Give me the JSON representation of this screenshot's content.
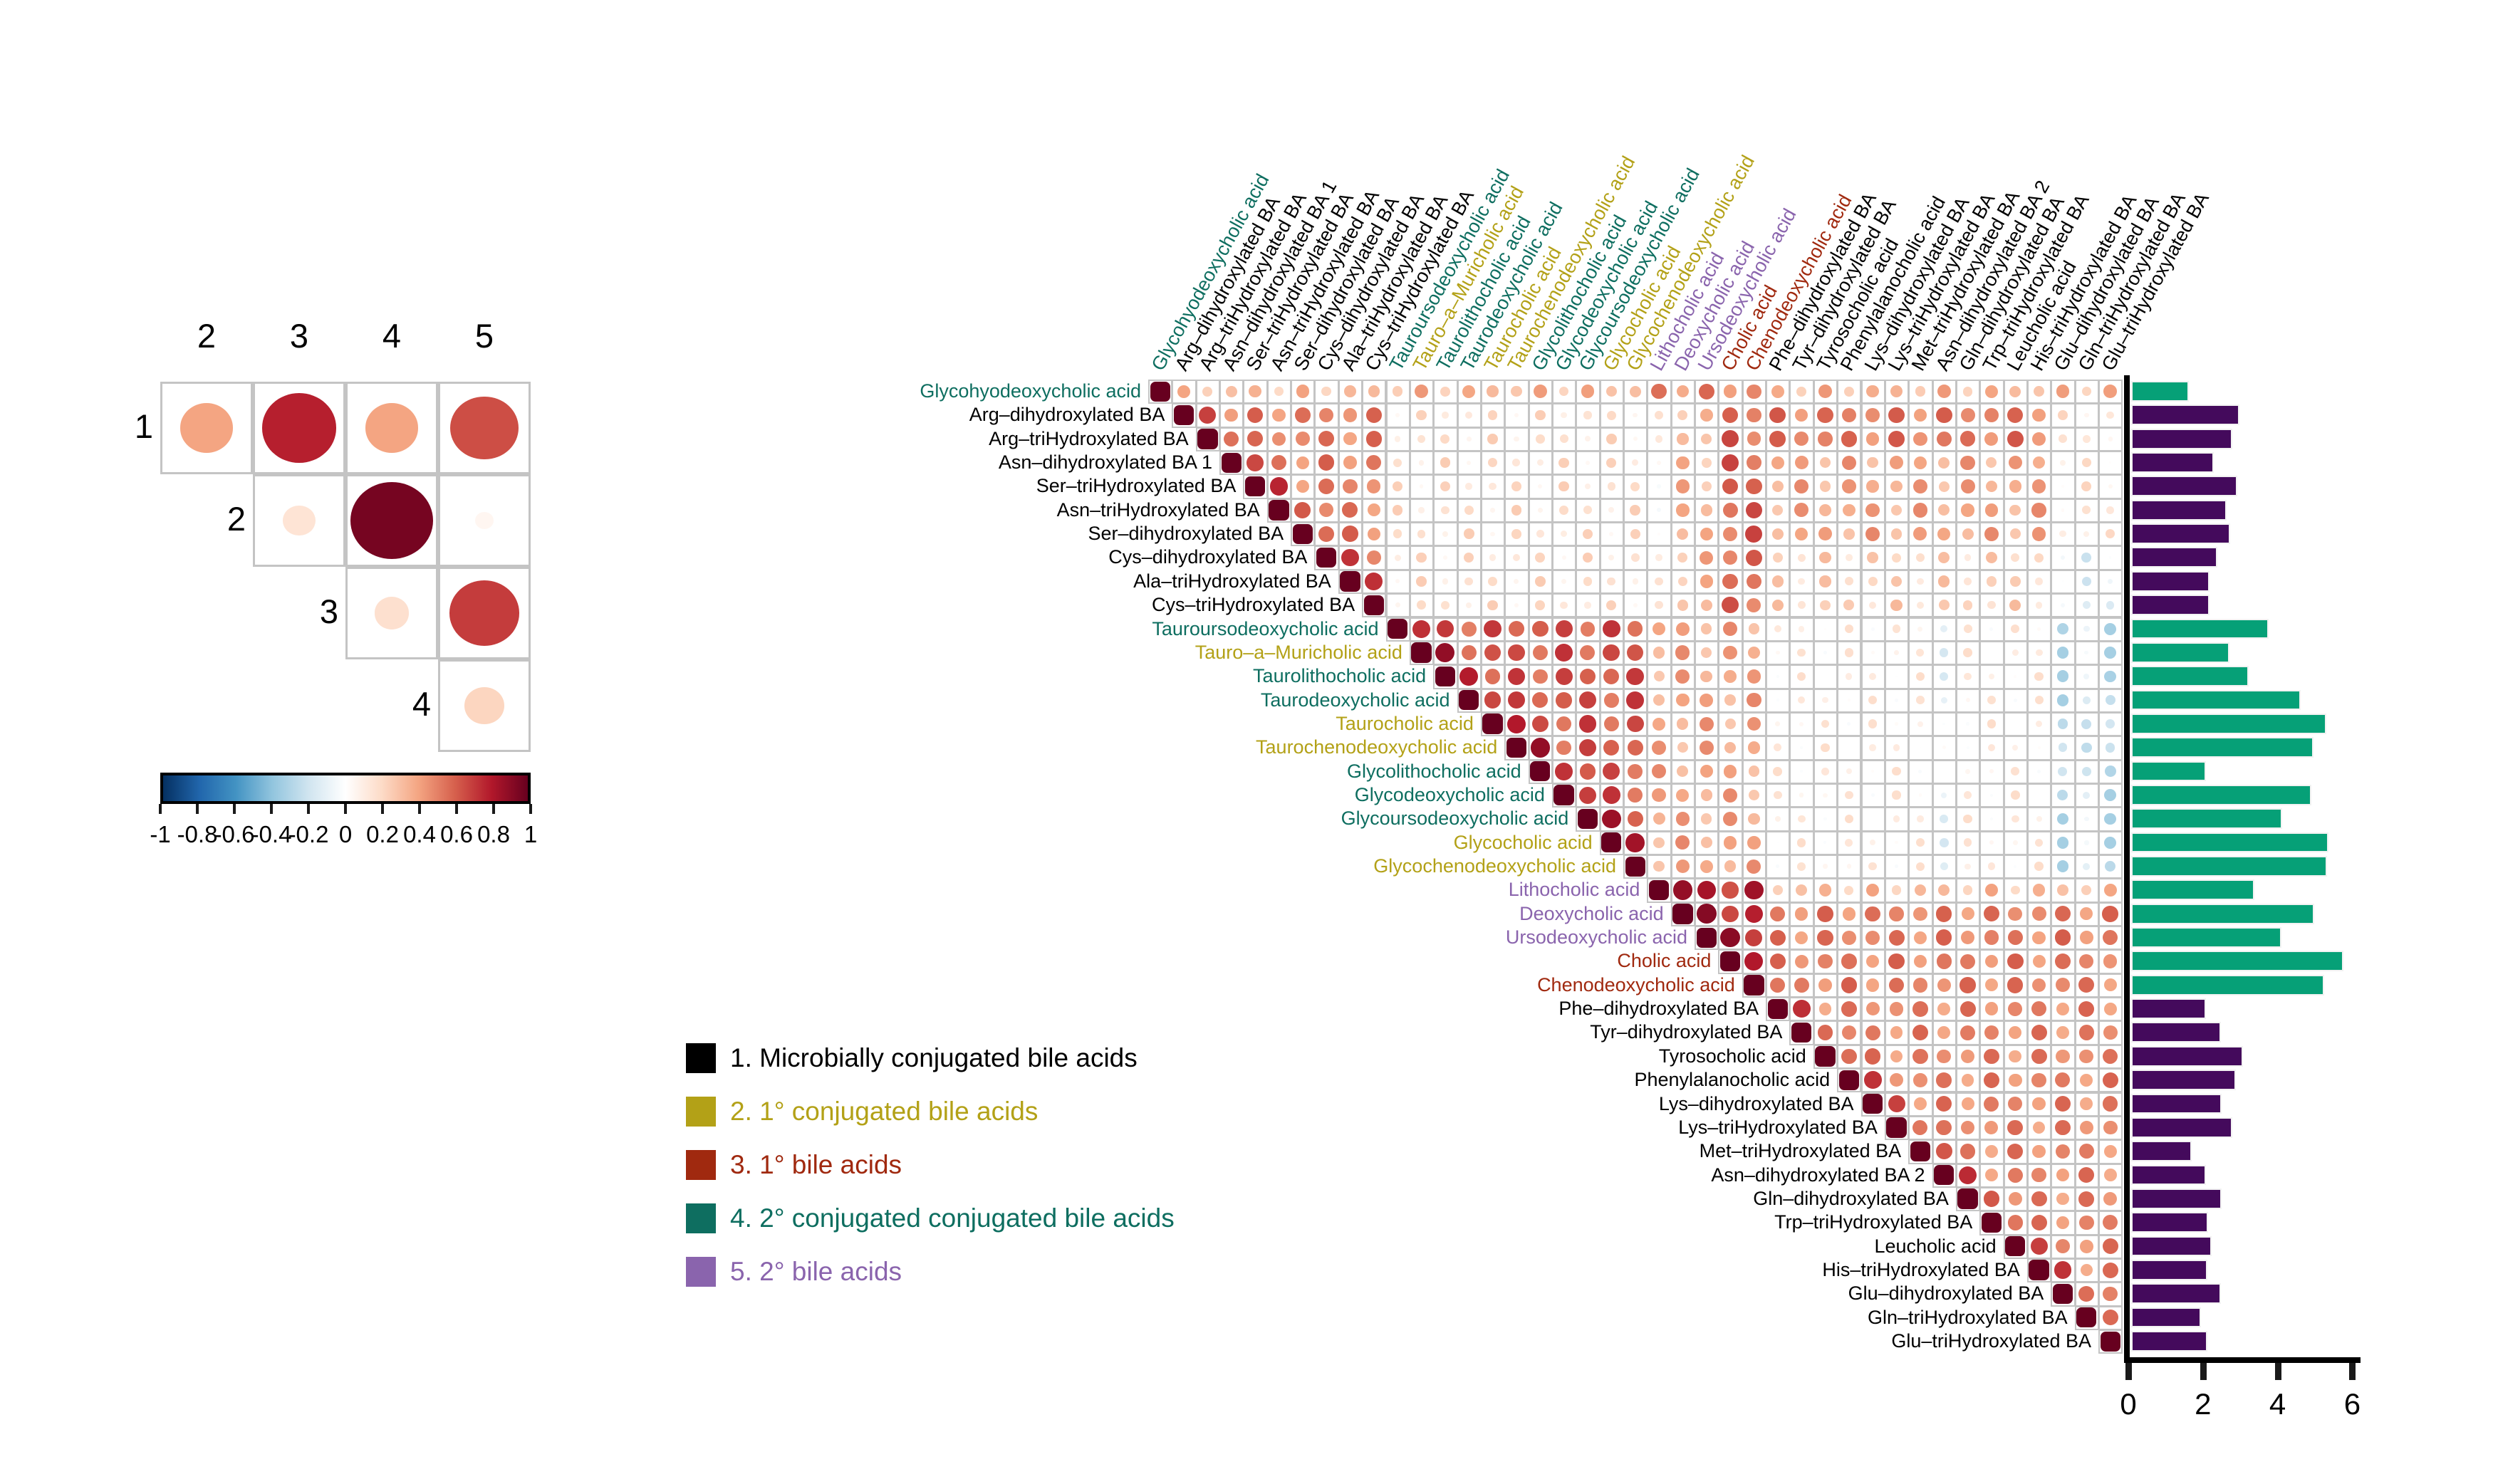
{
  "figure": {
    "background": "#ffffff",
    "group_colors": {
      "1": "#000000",
      "2": "#b3a117",
      "3": "#a0290f",
      "4": "#0e6e60",
      "5": "#8a64ad"
    },
    "bar_colors": {
      "microbial": "#440a5c",
      "other": "#06a077"
    },
    "grid_color": "#c4c4c4",
    "diagonal_color": "#67001f"
  },
  "legend": {
    "items": [
      {
        "label": "1. Microbially conjugated bile acids",
        "color": "#000000"
      },
      {
        "label": "2. 1° conjugated bile acids",
        "color": "#b3a117"
      },
      {
        "label": "3. 1° bile acids",
        "color": "#a0290f"
      },
      {
        "label": "4. 2° conjugated conjugated bile acids",
        "color": "#0e6e60"
      },
      {
        "label": "5. 2° bile acids",
        "color": "#8a64ad"
      }
    ]
  },
  "chart_data": [
    {
      "type": "heatmap",
      "name": "group-summary-correlogram",
      "title": "",
      "layout": "upper-triangle-no-diagonal",
      "col_labels": [
        "2",
        "3",
        "4",
        "5"
      ],
      "row_labels": [
        "1",
        "2",
        "3",
        "4"
      ],
      "values": [
        {
          "row": 1,
          "col": 2,
          "r": 0.4
        },
        {
          "row": 1,
          "col": 3,
          "r": 0.78
        },
        {
          "row": 1,
          "col": 4,
          "r": 0.4
        },
        {
          "row": 1,
          "col": 5,
          "r": 0.65
        },
        {
          "row": 2,
          "col": 3,
          "r": 0.15
        },
        {
          "row": 2,
          "col": 4,
          "r": 0.96
        },
        {
          "row": 2,
          "col": 5,
          "r": 0.05
        },
        {
          "row": 3,
          "col": 4,
          "r": 0.17
        },
        {
          "row": 3,
          "col": 5,
          "r": 0.7
        },
        {
          "row": 4,
          "col": 5,
          "r": 0.22
        }
      ]
    },
    {
      "type": "heatmap",
      "name": "colorbar-scale",
      "tick_labels": [
        "-1",
        "-0.8",
        "-0.6",
        "-0.4",
        "-0.2",
        "0",
        "0.2",
        "0.4",
        "0.6",
        "0.8",
        "1"
      ],
      "range": [
        -1,
        1
      ],
      "color_stops": [
        {
          "v": -1.0,
          "c": "#053061"
        },
        {
          "v": -0.8,
          "c": "#2166ac"
        },
        {
          "v": -0.6,
          "c": "#4393c3"
        },
        {
          "v": -0.4,
          "c": "#92c5de"
        },
        {
          "v": -0.2,
          "c": "#d1e5f0"
        },
        {
          "v": 0.0,
          "c": "#ffffff"
        },
        {
          "v": 0.2,
          "c": "#fddbc7"
        },
        {
          "v": 0.4,
          "c": "#f4a582"
        },
        {
          "v": 0.6,
          "c": "#d6604d"
        },
        {
          "v": 0.8,
          "c": "#b2182b"
        },
        {
          "v": 1.0,
          "c": "#67001f"
        }
      ]
    },
    {
      "type": "heatmap",
      "name": "bile-acid-correlation-matrix",
      "layout": "upper-triangle-with-diagonal",
      "n": 41,
      "variables": [
        {
          "label": "Glycohyodeoxycholic acid",
          "group": 4
        },
        {
          "label": "Arg–dihydroxylated BA",
          "group": 1
        },
        {
          "label": "Arg–triHydroxylated BA",
          "group": 1
        },
        {
          "label": "Asn–dihydroxylated BA 1",
          "group": 1
        },
        {
          "label": "Ser–triHydroxylated BA",
          "group": 1
        },
        {
          "label": "Asn–triHydroxylated BA",
          "group": 1
        },
        {
          "label": "Ser–dihydroxylated BA",
          "group": 1
        },
        {
          "label": "Cys–dihydroxylated BA",
          "group": 1
        },
        {
          "label": "Ala–triHydroxylated BA",
          "group": 1
        },
        {
          "label": "Cys–triHydroxylated BA",
          "group": 1
        },
        {
          "label": "Tauroursodeoxycholic acid",
          "group": 4
        },
        {
          "label": "Tauro–a–Muricholic acid",
          "group": 2
        },
        {
          "label": "Taurolithocholic acid",
          "group": 4
        },
        {
          "label": "Taurodeoxycholic acid",
          "group": 4
        },
        {
          "label": "Taurocholic acid",
          "group": 2
        },
        {
          "label": "Taurochenodeoxycholic acid",
          "group": 2
        },
        {
          "label": "Glycolithocholic acid",
          "group": 4
        },
        {
          "label": "Glycodeoxycholic acid",
          "group": 4
        },
        {
          "label": "Glycoursodeoxycholic acid",
          "group": 4
        },
        {
          "label": "Glycocholic acid",
          "group": 2
        },
        {
          "label": "Glycochenodeoxycholic acid",
          "group": 2
        },
        {
          "label": "Lithocholic acid",
          "group": 5
        },
        {
          "label": "Deoxycholic acid",
          "group": 5
        },
        {
          "label": "Ursodeoxycholic acid",
          "group": 5
        },
        {
          "label": "Cholic acid",
          "group": 3
        },
        {
          "label": "Chenodeoxycholic acid",
          "group": 3
        },
        {
          "label": "Phe–dihydroxylated BA",
          "group": 1
        },
        {
          "label": "Tyr–dihydroxylated BA",
          "group": 1
        },
        {
          "label": "Tyrosocholic acid",
          "group": 1
        },
        {
          "label": "Phenylalanocholic acid",
          "group": 1
        },
        {
          "label": "Lys–dihydroxylated BA",
          "group": 1
        },
        {
          "label": "Lys–triHydroxylated BA",
          "group": 1
        },
        {
          "label": "Met–triHydroxylated BA",
          "group": 1
        },
        {
          "label": "Asn–dihydroxylated BA 2",
          "group": 1
        },
        {
          "label": "Gln–dihydroxylated BA",
          "group": 1
        },
        {
          "label": "Trp–triHydroxylated BA",
          "group": 1
        },
        {
          "label": "Leucholic acid",
          "group": 1
        },
        {
          "label": "His–triHydroxylated BA",
          "group": 1
        },
        {
          "label": "Glu–dihydroxylated BA",
          "group": 1
        },
        {
          "label": "Gln–triHydroxylated BA",
          "group": 1
        },
        {
          "label": "Glu–triHydroxylated BA",
          "group": 1
        }
      ],
      "correlation_model": {
        "note": "approximate block means read from figure; last matching rule wins; i<j (1-indexed)",
        "rules": [
          {
            "rows": [
              2,
              10
            ],
            "cols": [
              2,
              10
            ],
            "r": 0.5
          },
          {
            "rows": [
              11,
              21
            ],
            "cols": [
              11,
              21
            ],
            "r": 0.62
          },
          {
            "rows": [
              22,
              26
            ],
            "cols": [
              22,
              26
            ],
            "r": 0.75
          },
          {
            "rows": [
              27,
              41
            ],
            "cols": [
              27,
              41
            ],
            "r": 0.48
          },
          {
            "rows": [
              1,
              1
            ],
            "cols": [
              2,
              10
            ],
            "r": 0.3
          },
          {
            "rows": [
              1,
              1
            ],
            "cols": [
              11,
              21
            ],
            "r": 0.33
          },
          {
            "rows": [
              1,
              1
            ],
            "cols": [
              22,
              26
            ],
            "r": 0.48
          },
          {
            "rows": [
              1,
              1
            ],
            "cols": [
              27,
              41
            ],
            "r": 0.33
          },
          {
            "rows": [
              2,
              10
            ],
            "cols": [
              11,
              21
            ],
            "r": 0.15
          },
          {
            "rows": [
              2,
              10
            ],
            "cols": [
              22,
              22
            ],
            "r": 0.06
          },
          {
            "rows": [
              2,
              10
            ],
            "cols": [
              23,
              24
            ],
            "r": 0.33
          },
          {
            "rows": [
              2,
              10
            ],
            "cols": [
              25,
              26
            ],
            "r": 0.58
          },
          {
            "rows": [
              2,
              3
            ],
            "cols": [
              27,
              41
            ],
            "r": 0.52
          },
          {
            "rows": [
              4,
              7
            ],
            "cols": [
              27,
              41
            ],
            "r": 0.38
          },
          {
            "rows": [
              8,
              10
            ],
            "cols": [
              27,
              41
            ],
            "r": 0.22
          },
          {
            "rows": [
              2,
              7
            ],
            "cols": [
              39,
              41
            ],
            "r": 0.12
          },
          {
            "rows": [
              8,
              10
            ],
            "cols": [
              39,
              41
            ],
            "r": -0.12
          },
          {
            "rows": [
              11,
              21
            ],
            "cols": [
              22,
              26
            ],
            "r": 0.38
          },
          {
            "rows": [
              11,
              21
            ],
            "cols": [
              27,
              38
            ],
            "r": 0.08
          },
          {
            "rows": [
              11,
              21
            ],
            "cols": [
              34,
              34
            ],
            "r": -0.08
          },
          {
            "rows": [
              11,
              21
            ],
            "cols": [
              39,
              39
            ],
            "r": -0.3
          },
          {
            "rows": [
              11,
              21
            ],
            "cols": [
              40,
              40
            ],
            "r": -0.15
          },
          {
            "rows": [
              11,
              21
            ],
            "cols": [
              41,
              41
            ],
            "r": -0.3
          },
          {
            "rows": [
              22,
              22
            ],
            "cols": [
              27,
              41
            ],
            "r": 0.3
          },
          {
            "rows": [
              23,
              26
            ],
            "cols": [
              27,
              41
            ],
            "r": 0.5
          }
        ],
        "clusters": [
          [
            1,
            1
          ],
          [
            2,
            10
          ],
          [
            11,
            21
          ],
          [
            22,
            26
          ],
          [
            27,
            41
          ]
        ],
        "near_diagonal_boost": 0.16,
        "jitter_amplitude": 0.11,
        "clamp": [
          -0.34,
          0.92
        ],
        "diagonal_r": 1.0
      }
    },
    {
      "type": "bar",
      "name": "abundance-bars",
      "orientation": "horizontal",
      "xlabel": "",
      "ylabel": "",
      "xlim": [
        0,
        6.3
      ],
      "xticks": [
        "0",
        "2",
        "4",
        "6"
      ],
      "grid": false,
      "categories": [
        "Glycohyodeoxycholic acid",
        "Arg–dihydroxylated BA",
        "Arg–triHydroxylated BA",
        "Asn–dihydroxylated BA 1",
        "Ser–triHydroxylated BA",
        "Asn–triHydroxylated BA",
        "Ser–dihydroxylated BA",
        "Cys–dihydroxylated BA",
        "Ala–triHydroxylated BA",
        "Cys–triHydroxylated BA",
        "Tauroursodeoxycholic acid",
        "Tauro–a–Muricholic acid",
        "Taurolithocholic acid",
        "Taurodeoxycholic acid",
        "Taurocholic acid",
        "Taurochenodeoxycholic acid",
        "Glycolithocholic acid",
        "Glycodeoxycholic acid",
        "Glycoursodeoxycholic acid",
        "Glycocholic acid",
        "Glycochenodeoxycholic acid",
        "Lithocholic acid",
        "Deoxycholic acid",
        "Ursodeoxycholic acid",
        "Cholic acid",
        "Chenodeoxycholic acid",
        "Phe–dihydroxylated BA",
        "Tyr–dihydroxylated BA",
        "Tyrosocholic acid",
        "Phenylalanocholic acid",
        "Lys–dihydroxylated BA",
        "Lys–triHydroxylated BA",
        "Met–triHydroxylated BA",
        "Asn–dihydroxylated BA 2",
        "Gln–dihydroxylated BA",
        "Trp–triHydroxylated BA",
        "Leucholic acid",
        "His–triHydroxylated BA",
        "Glu–dihydroxylated BA",
        "Gln–triHydroxylated BA",
        "Glu–triHydroxylated BA"
      ],
      "values": [
        1.55,
        2.9,
        2.71,
        2.21,
        2.85,
        2.55,
        2.65,
        2.3,
        2.09,
        2.09,
        3.69,
        2.63,
        3.14,
        4.54,
        5.23,
        4.89,
        2.01,
        4.82,
        4.05,
        5.29,
        5.25,
        3.3,
        4.9,
        4.02,
        5.69,
        5.18,
        2.01,
        2.41,
        2.99,
        2.8,
        2.43,
        2.71,
        1.63,
        2.0,
        2.42,
        2.07,
        2.16,
        2.04,
        2.41,
        1.87,
        2.04
      ]
    }
  ]
}
